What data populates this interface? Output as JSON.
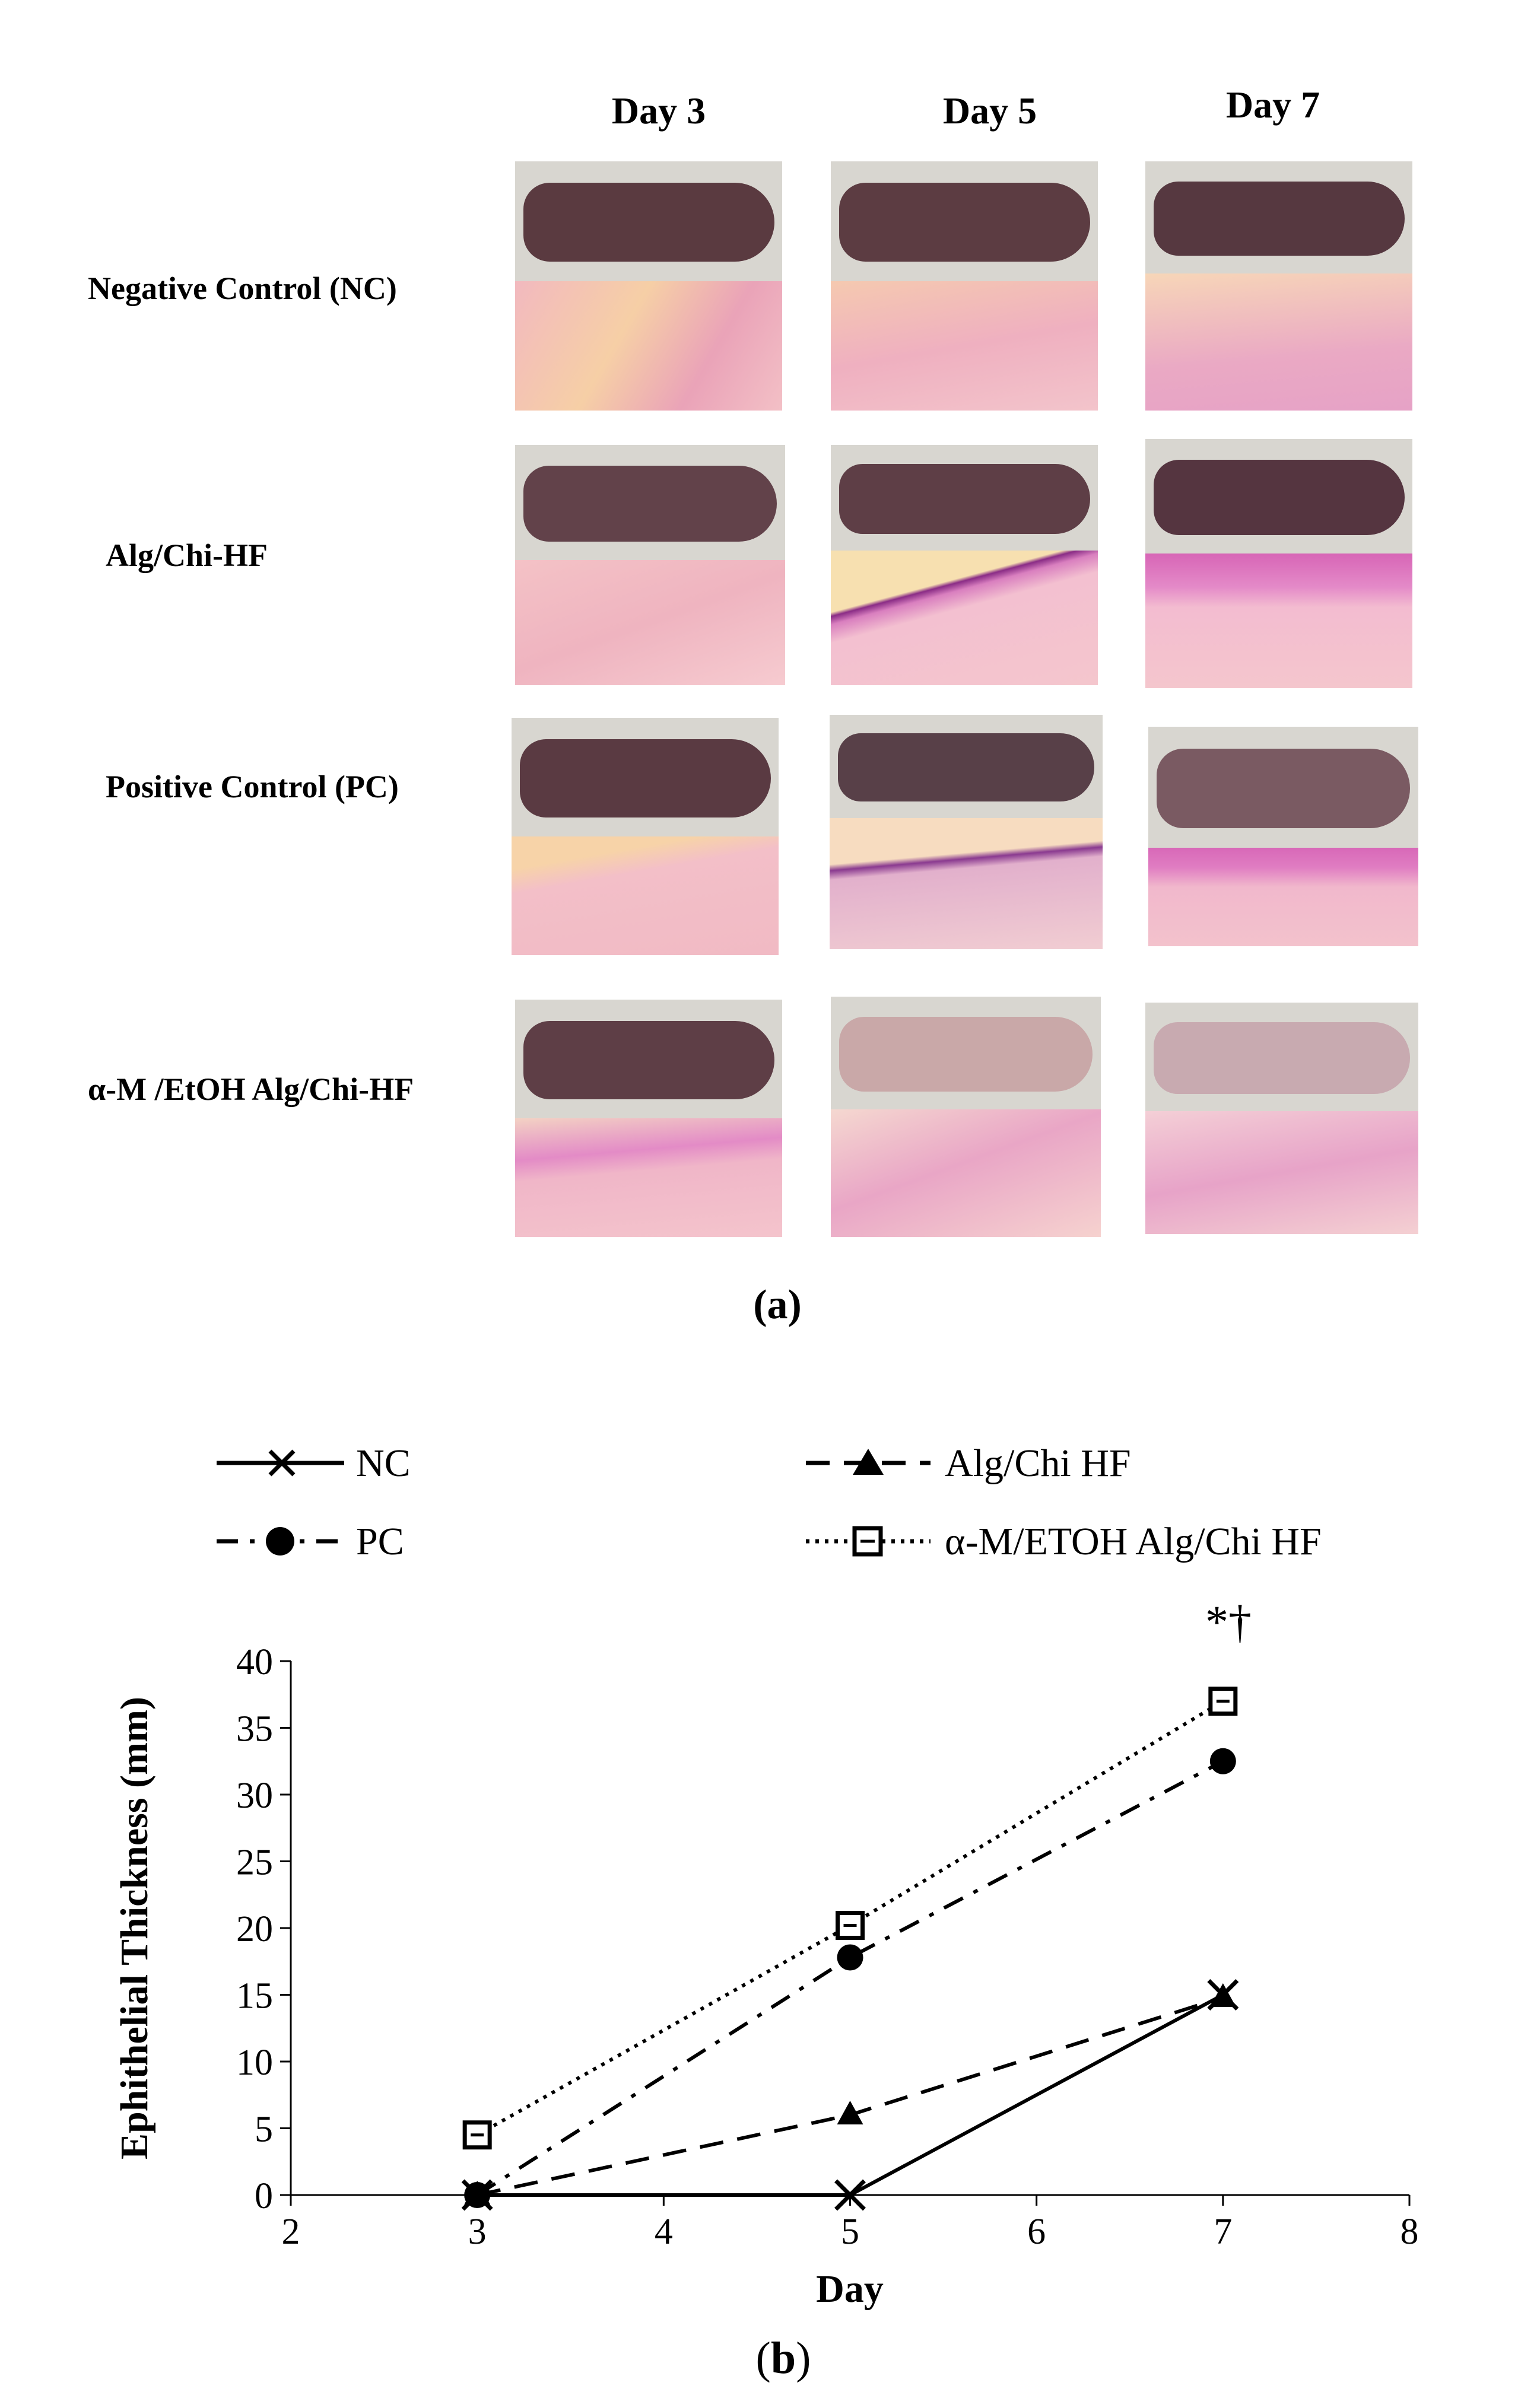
{
  "panel_a": {
    "columns": [
      "Day 3",
      "Day 5",
      "Day 7"
    ],
    "rows": [
      "Negative Control (NC)",
      "Alg/Chi-HF",
      "Positive Control (PC)",
      "α-M /EtOH Alg/Chi-HF"
    ],
    "label": "(a)"
  },
  "panel_b": {
    "label": "(b)"
  },
  "chart_data": {
    "type": "line",
    "xlabel": "Day",
    "ylabel": "Ephithelial Thickness (mm)",
    "xlim": [
      2,
      8
    ],
    "ylim": [
      0,
      40
    ],
    "x_ticks": [
      2,
      3,
      4,
      5,
      6,
      7,
      8
    ],
    "y_ticks": [
      0,
      5,
      10,
      15,
      20,
      25,
      30,
      35,
      40
    ],
    "x": [
      3,
      5,
      7
    ],
    "series": [
      {
        "name": "NC",
        "values": [
          0,
          0,
          15
        ],
        "marker": "x",
        "line": "solid"
      },
      {
        "name": "Alg/Chi HF",
        "values": [
          0,
          6,
          14.8
        ],
        "marker": "triangle",
        "line": "dashed"
      },
      {
        "name": "PC",
        "values": [
          0,
          17.8,
          32.5
        ],
        "marker": "circle",
        "line": "dash-dot"
      },
      {
        "name": "α-M/ETOH Alg/Chi HF",
        "values": [
          4.5,
          20.2,
          37
        ],
        "marker": "square",
        "line": "dotted"
      }
    ],
    "annotation": "*†",
    "grid": false,
    "legend_position": "top"
  }
}
